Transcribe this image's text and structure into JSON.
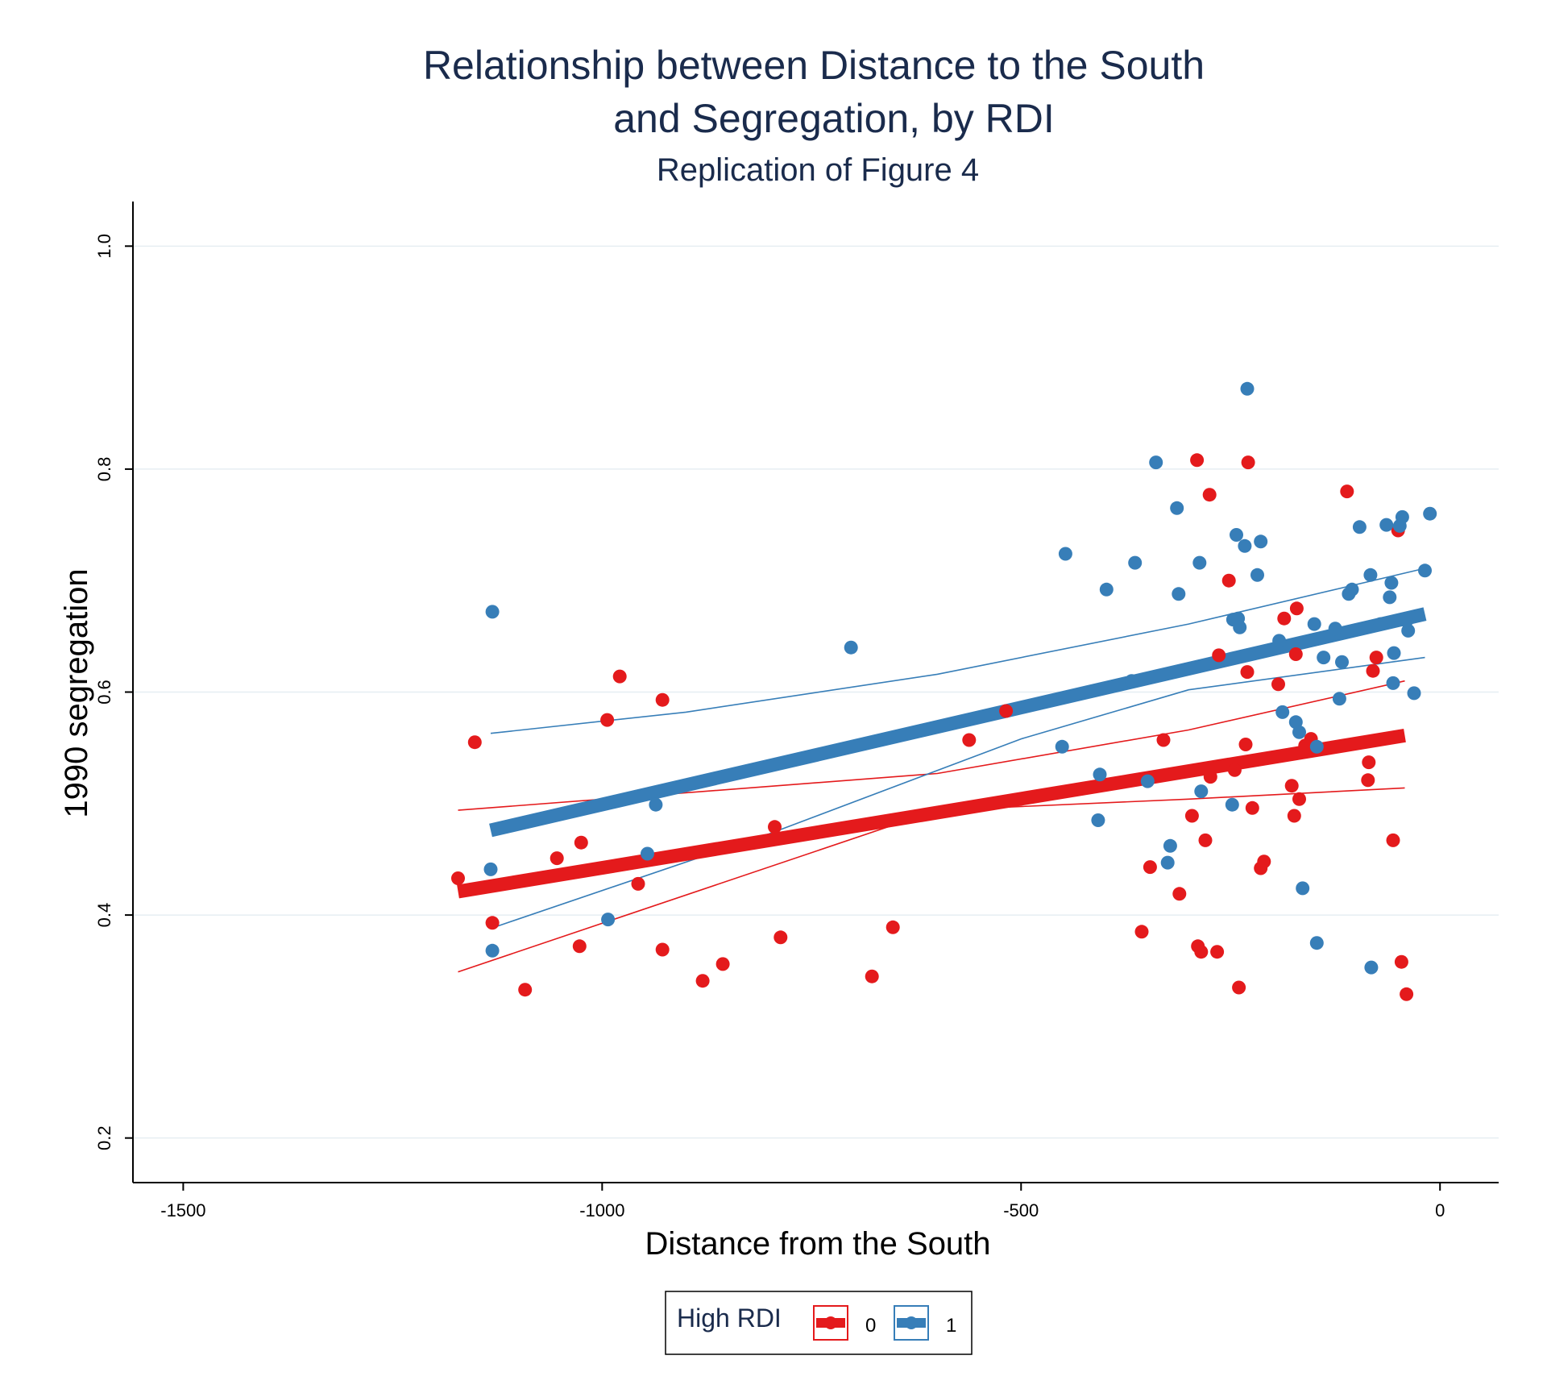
{
  "chart_data": {
    "type": "scatter",
    "title_lines": [
      "Relationship between Distance to the South",
      "and Segregation, by RDI"
    ],
    "subtitle": "Replication of Figure 4",
    "xlabel": "Distance from the South",
    "ylabel": "1990 segregation",
    "xlim": [
      -1560,
      70
    ],
    "ylim": [
      0.16,
      1.04
    ],
    "xticks": [
      -1500,
      -1000,
      -500,
      0
    ],
    "yticks": [
      0.2,
      0.4,
      0.6,
      0.8,
      1.0
    ],
    "ytick_labels": [
      "0.2",
      "0.4",
      "0.6",
      "0.8",
      "1.0"
    ],
    "grid": true,
    "legend": {
      "title": "High RDI",
      "placement": "bottom-center",
      "entries": [
        "0",
        "1"
      ]
    },
    "series": [
      {
        "name": "0",
        "color": "#e41a1c",
        "points": [
          [
            -1172,
            0.433
          ],
          [
            -1152,
            0.555
          ],
          [
            -1131,
            0.393
          ],
          [
            -1092,
            0.333
          ],
          [
            -1054,
            0.451
          ],
          [
            -1025,
            0.465
          ],
          [
            -1027,
            0.372
          ],
          [
            -994,
            0.575
          ],
          [
            -979,
            0.614
          ],
          [
            -957,
            0.428
          ],
          [
            -928,
            0.593
          ],
          [
            -928,
            0.369
          ],
          [
            -880,
            0.341
          ],
          [
            -856,
            0.356
          ],
          [
            -794,
            0.479
          ],
          [
            -787,
            0.38
          ],
          [
            -678,
            0.345
          ],
          [
            -653,
            0.389
          ],
          [
            -562,
            0.557
          ],
          [
            -518,
            0.583
          ],
          [
            -356,
            0.385
          ],
          [
            -346,
            0.443
          ],
          [
            -330,
            0.557
          ],
          [
            -311,
            0.419
          ],
          [
            -296,
            0.489
          ],
          [
            -290,
            0.808
          ],
          [
            -289,
            0.372
          ],
          [
            -285,
            0.367
          ],
          [
            -280,
            0.467
          ],
          [
            -276,
            0.531
          ],
          [
            -274,
            0.524
          ],
          [
            -275,
            0.777
          ],
          [
            -264,
            0.633
          ],
          [
            -266,
            0.367
          ],
          [
            -252,
            0.7
          ],
          [
            -240,
            0.335
          ],
          [
            -245,
            0.53
          ],
          [
            -232,
            0.553
          ],
          [
            -230,
            0.618
          ],
          [
            -229,
            0.806
          ],
          [
            -224,
            0.496
          ],
          [
            -214,
            0.442
          ],
          [
            -210,
            0.448
          ],
          [
            -193,
            0.607
          ],
          [
            -186,
            0.666
          ],
          [
            -177,
            0.516
          ],
          [
            -174,
            0.489
          ],
          [
            -172,
            0.634
          ],
          [
            -171,
            0.675
          ],
          [
            -168,
            0.504
          ],
          [
            -161,
            0.552
          ],
          [
            -154,
            0.558
          ],
          [
            -111,
            0.78
          ],
          [
            -86,
            0.521
          ],
          [
            -85,
            0.537
          ],
          [
            -80,
            0.619
          ],
          [
            -76,
            0.631
          ],
          [
            -56,
            0.467
          ],
          [
            -50,
            0.745
          ],
          [
            -46,
            0.358
          ],
          [
            -40,
            0.329
          ]
        ],
        "fit": [
          [
            -1172,
            0.421
          ],
          [
            -42,
            0.561
          ]
        ],
        "ci_upper": [
          [
            -1172,
            0.494
          ],
          [
            -600,
            0.527
          ],
          [
            -300,
            0.566
          ],
          [
            -42,
            0.61
          ]
        ],
        "ci_lower": [
          [
            -1172,
            0.349
          ],
          [
            -600,
            0.494
          ],
          [
            -300,
            0.504
          ],
          [
            -42,
            0.514
          ]
        ]
      },
      {
        "name": "1",
        "color": "#377eb8",
        "points": [
          [
            -1133,
            0.441
          ],
          [
            -1131,
            0.672
          ],
          [
            -1131,
            0.368
          ],
          [
            -993,
            0.396
          ],
          [
            -946,
            0.455
          ],
          [
            -936,
            0.499
          ],
          [
            -703,
            0.64
          ],
          [
            -451,
            0.551
          ],
          [
            -447,
            0.724
          ],
          [
            -406,
            0.526
          ],
          [
            -408,
            0.485
          ],
          [
            -398,
            0.692
          ],
          [
            -368,
            0.61
          ],
          [
            -364,
            0.716
          ],
          [
            -349,
            0.52
          ],
          [
            -339,
            0.806
          ],
          [
            -325,
            0.447
          ],
          [
            -322,
            0.462
          ],
          [
            -314,
            0.765
          ],
          [
            -312,
            0.688
          ],
          [
            -287,
            0.716
          ],
          [
            -285,
            0.511
          ],
          [
            -248,
            0.499
          ],
          [
            -247,
            0.665
          ],
          [
            -243,
            0.741
          ],
          [
            -241,
            0.666
          ],
          [
            -239,
            0.658
          ],
          [
            -233,
            0.731
          ],
          [
            -230,
            0.872
          ],
          [
            -218,
            0.705
          ],
          [
            -214,
            0.735
          ],
          [
            -192,
            0.646
          ],
          [
            -188,
            0.582
          ],
          [
            -172,
            0.573
          ],
          [
            -168,
            0.564
          ],
          [
            -164,
            0.424
          ],
          [
            -150,
            0.661
          ],
          [
            -147,
            0.375
          ],
          [
            -147,
            0.551
          ],
          [
            -139,
            0.631
          ],
          [
            -125,
            0.657
          ],
          [
            -120,
            0.594
          ],
          [
            -117,
            0.627
          ],
          [
            -109,
            0.688
          ],
          [
            -105,
            0.692
          ],
          [
            -96,
            0.748
          ],
          [
            -83,
            0.705
          ],
          [
            -82,
            0.353
          ],
          [
            -71,
            0.661
          ],
          [
            -64,
            0.75
          ],
          [
            -60,
            0.685
          ],
          [
            -58,
            0.698
          ],
          [
            -56,
            0.608
          ],
          [
            -55,
            0.635
          ],
          [
            -48,
            0.749
          ],
          [
            -45,
            0.757
          ],
          [
            -40,
            0.664
          ],
          [
            -38,
            0.655
          ],
          [
            -31,
            0.599
          ],
          [
            -18,
            0.709
          ],
          [
            -12,
            0.76
          ]
        ],
        "fit": [
          [
            -1133,
            0.476
          ],
          [
            -18,
            0.67
          ]
        ],
        "ci_upper": [
          [
            -1133,
            0.563
          ],
          [
            -900,
            0.582
          ],
          [
            -600,
            0.616
          ],
          [
            -300,
            0.661
          ],
          [
            -18,
            0.711
          ]
        ],
        "ci_lower": [
          [
            -1133,
            0.388
          ],
          [
            -800,
            0.473
          ],
          [
            -500,
            0.558
          ],
          [
            -300,
            0.602
          ],
          [
            -18,
            0.631
          ]
        ]
      }
    ]
  }
}
